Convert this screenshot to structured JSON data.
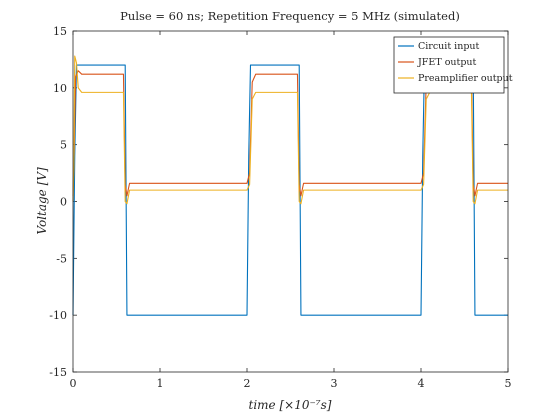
{
  "chart_data": {
    "type": "line",
    "title": "Pulse = 60 ns; Repetition Frequency = 5 MHz (simulated)",
    "xlabel": "time [×10⁻⁷s]",
    "ylabel": "Voltage [V]",
    "xlim": [
      0,
      5
    ],
    "ylim": [
      -15,
      15
    ],
    "xticks": [
      0,
      1,
      2,
      3,
      4,
      5
    ],
    "yticks": [
      -15,
      -10,
      -5,
      0,
      5,
      10,
      15
    ],
    "grid": false,
    "legend_position": "top-right",
    "series": [
      {
        "name": "Circuit input",
        "color": "#0072BD",
        "x": [
          0,
          0.02,
          0.04,
          0.55,
          0.6,
          0.62,
          2.0,
          2.02,
          2.04,
          2.55,
          2.6,
          2.62,
          4.0,
          4.02,
          4.04,
          4.55,
          4.6,
          4.62,
          5.0
        ],
        "y": [
          -10,
          4,
          12,
          12,
          12,
          -10,
          -10,
          4,
          12,
          12,
          12,
          -10,
          -10,
          4,
          12,
          12,
          12,
          -10,
          -10
        ]
      },
      {
        "name": "JFET output",
        "color": "#D95319",
        "x": [
          0,
          0.015,
          0.03,
          0.06,
          0.1,
          0.58,
          0.6,
          0.62,
          0.65,
          2.0,
          2.03,
          2.06,
          2.1,
          2.58,
          2.6,
          2.62,
          2.65,
          4.0,
          4.03,
          4.06,
          4.1,
          4.58,
          4.6,
          4.62,
          4.65,
          5.0
        ],
        "y": [
          0.5,
          5,
          11,
          11.5,
          11.2,
          11.2,
          1.5,
          0.5,
          1.6,
          1.6,
          2.5,
          10.5,
          11.2,
          11.2,
          1.5,
          0.5,
          1.6,
          1.6,
          2.5,
          10.5,
          11.2,
          11.2,
          1.5,
          0.5,
          1.6,
          1.6
        ]
      },
      {
        "name": "Preamplifier output",
        "color": "#EDB120",
        "x": [
          0,
          0.01,
          0.02,
          0.04,
          0.06,
          0.1,
          0.58,
          0.6,
          0.62,
          0.65,
          2.0,
          2.03,
          2.06,
          2.1,
          2.58,
          2.6,
          2.62,
          2.65,
          4.0,
          4.03,
          4.06,
          4.1,
          4.58,
          4.6,
          4.62,
          4.65,
          5.0
        ],
        "y": [
          0,
          3,
          12.8,
          12.2,
          10,
          9.6,
          9.6,
          0,
          -0.2,
          1.0,
          1.0,
          1.5,
          9,
          9.6,
          9.6,
          0,
          -0.2,
          1.0,
          1.0,
          1.5,
          9,
          9.6,
          9.6,
          0,
          -0.2,
          1.0,
          1.0
        ]
      }
    ]
  }
}
